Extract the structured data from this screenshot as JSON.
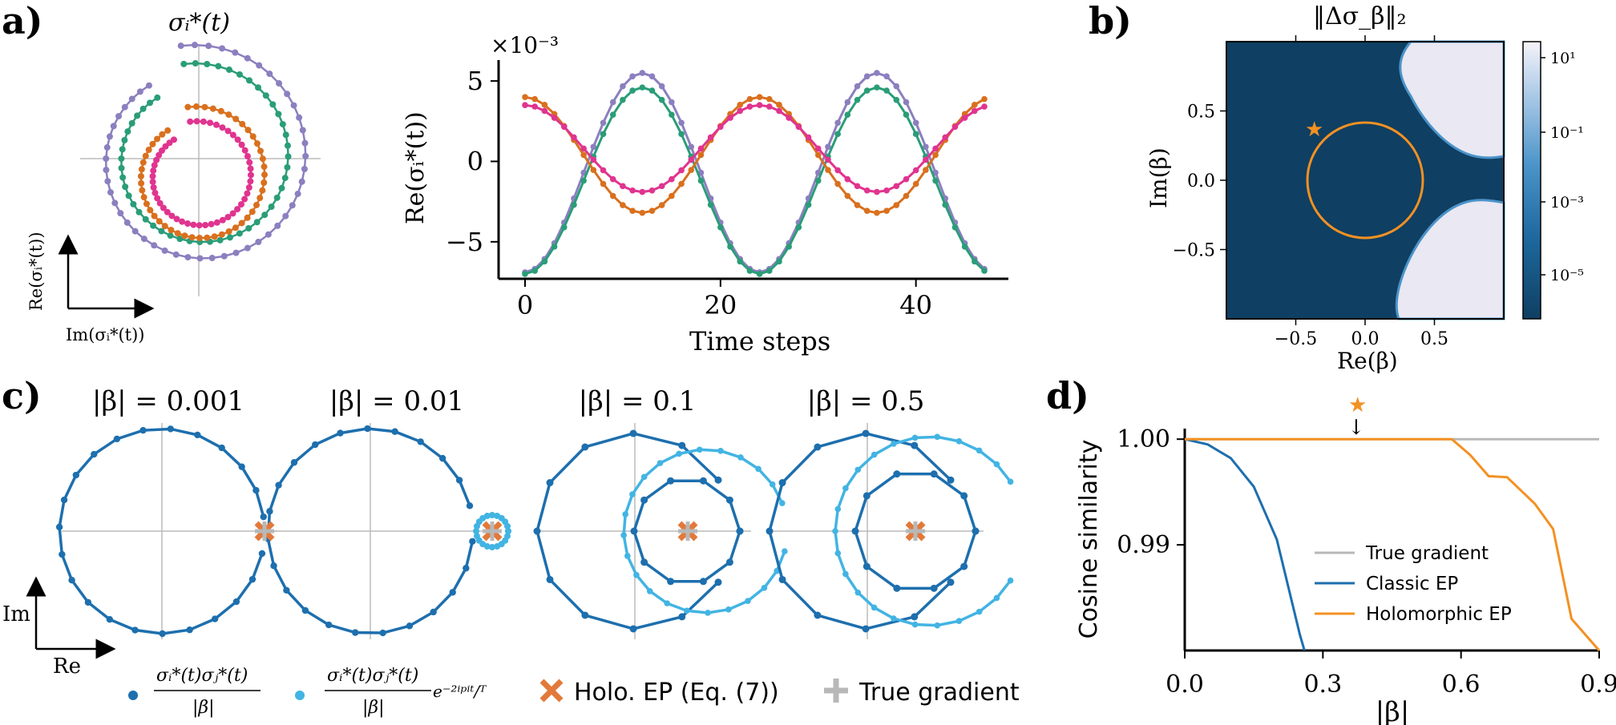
{
  "colors": {
    "purple": "#8c7fbf",
    "green": "#2a9d78",
    "orange": "#d9701e",
    "pink": "#e0348f",
    "dark_blue": "#1d6fae",
    "light_blue": "#42b4e3",
    "ep_orange": "#e2793a",
    "gray": "#b8b8b8",
    "navy": "#0f3f62",
    "line_orange": "#f39122"
  },
  "panels": {
    "a": {
      "letter": "a)",
      "spiral_title": "σᵢ*(t)",
      "spiral_axis_x": "Im(σᵢ*(t))",
      "spiral_axis_y": "Re(σᵢ*(t))",
      "ts_exponent": "×10⁻³",
      "ts_ylabel": "Re(σᵢ*(t))",
      "ts_xlabel": "Time steps"
    },
    "b": {
      "letter": "b)",
      "title": "‖Δσ_β‖₂",
      "xlabel": "Re(β)",
      "ylabel": "Im(β)",
      "x_ticks": [
        "−0.5",
        "0.0",
        "0.5"
      ],
      "y_ticks": [
        "0.5",
        "0.0",
        "−0.5"
      ],
      "colorbar_ticks": [
        "10¹",
        "10⁻¹",
        "10⁻³",
        "10⁻⁵"
      ],
      "star": "★"
    },
    "c": {
      "letter": "c)",
      "titles": [
        "|β| = 0.001",
        "|β| = 0.01",
        "|β| = 0.1",
        "|β| = 0.5"
      ],
      "axis_im": "Im",
      "axis_re": "Re",
      "legend": {
        "dark_num": "σᵢ*(t)σⱼ*(t)",
        "dark_den": "|β|",
        "light_num": "σᵢ*(t)σⱼ*(t)",
        "light_den": "|β|",
        "light_factor": "e⁻²ⁱᵖⁱᵗ/ᵀ",
        "holo": "Holo. EP (Eq. (7))",
        "true": "True gradient"
      }
    },
    "d": {
      "letter": "d)",
      "star": "★",
      "arrow": "↓"
    }
  },
  "chart_data": [
    {
      "type": "line",
      "title": "σᵢ*(t)",
      "xlabel": "Im(σᵢ*(t))",
      "ylabel": "Re(σᵢ*(t))",
      "series": [
        {
          "values_note": "purple spiral",
          "radius_start": 1.55,
          "radius_end": 1.2
        },
        {
          "values_note": "green spiral",
          "radius_start": 1.3,
          "radius_end": 1.0
        },
        {
          "values_note": "orange spiral",
          "radius_start": 0.95,
          "radius_end": 0.75
        },
        {
          "values_note": "pink spiral",
          "radius_start": 0.75,
          "radius_end": 0.6
        }
      ]
    },
    {
      "type": "line",
      "xlabel": "Time steps",
      "ylabel": "Re(σᵢ*(t))",
      "xlim": [
        0,
        47
      ],
      "ylim": [
        -7.3,
        6.3
      ],
      "x_ticks": [
        0,
        20,
        40
      ],
      "y_ticks": [
        5,
        0,
        -5
      ],
      "y_scale_label": "×10⁻³",
      "period": 24,
      "series": [
        {
          "color": "purple",
          "amplitude": 6.2,
          "offset": -0.7,
          "phase": "peak at t=12"
        },
        {
          "color": "green",
          "amplitude": 5.8,
          "offset": -1.2,
          "phase": "peak at t=12"
        },
        {
          "color": "orange",
          "amplitude": 3.6,
          "offset": 0.4,
          "phase": "trough at t=12"
        },
        {
          "color": "pink",
          "amplitude": 2.7,
          "offset": 0.8,
          "phase": "trough at t=12"
        }
      ]
    },
    {
      "type": "heatmap",
      "title": "‖Δσ_β‖₂",
      "xlabel": "Re(β)",
      "ylabel": "Im(β)",
      "xlim": [
        -1,
        1
      ],
      "ylim": [
        -1,
        1
      ],
      "colorbar": "log, 10⁻⁶ to 10¹",
      "circle_radius": 0.4,
      "star": [
        -0.37,
        0.37
      ]
    },
    {
      "type": "line",
      "titles": [
        "|β| = 0.001",
        "|β| = 0.01",
        "|β| = 0.1",
        "|β| = 0.5"
      ],
      "beta": [
        0.001,
        0.01,
        0.1,
        0.5
      ]
    },
    {
      "type": "line",
      "xlabel": "|β|",
      "ylabel": "Cosine similarity",
      "xlim": [
        0,
        0.9
      ],
      "ylim": [
        0.98,
        1.001
      ],
      "x_ticks": [
        "0.0",
        "0.3",
        "0.6",
        "0.9"
      ],
      "y_ticks": [
        "1.00",
        "0.99"
      ],
      "legend_placement": "bottom-right",
      "series": [
        {
          "name": "True gradient",
          "color": "gray",
          "x": [
            0,
            0.9
          ],
          "y": [
            1.0,
            1.0
          ]
        },
        {
          "name": "Classic EP",
          "color": "blue",
          "x": [
            0,
            0.05,
            0.1,
            0.15,
            0.2,
            0.25,
            0.26
          ],
          "y": [
            1.0,
            0.9995,
            0.9982,
            0.9955,
            0.9905,
            0.9815,
            0.98
          ]
        },
        {
          "name": "Holomorphic EP",
          "color": "orange",
          "x": [
            0,
            0.3,
            0.58,
            0.62,
            0.66,
            0.7,
            0.76,
            0.8,
            0.84,
            0.87,
            0.9
          ],
          "y": [
            1.0,
            1.0,
            1.0,
            0.9985,
            0.9965,
            0.9964,
            0.9939,
            0.9915,
            0.983,
            0.9815,
            0.9799
          ]
        }
      ]
    }
  ]
}
